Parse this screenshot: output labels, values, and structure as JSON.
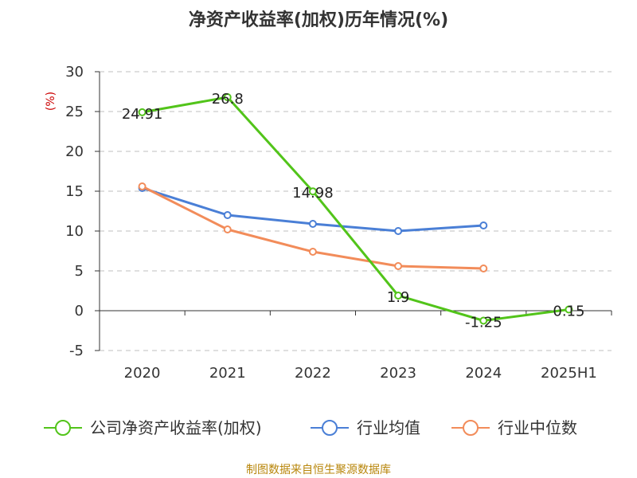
{
  "chart_data": {
    "type": "line",
    "title": "净资产收益率(加权)历年情况(%)",
    "ylabel": "(%)",
    "xlabel": "",
    "categories": [
      "2020",
      "2021",
      "2022",
      "2023",
      "2024",
      "2025H1"
    ],
    "ylim": [
      -5,
      30
    ],
    "yticks": [
      -5,
      0,
      5,
      10,
      15,
      20,
      25,
      30
    ],
    "grid": true,
    "legend_position": "bottom",
    "series": [
      {
        "name": "公司净资产收益率(加权)",
        "color": "#52c41a",
        "values": [
          24.91,
          26.8,
          14.98,
          1.9,
          -1.25,
          0.15
        ],
        "labels": [
          "24.91",
          "26.8",
          "14.98",
          "1.9",
          "-1.25",
          "0.15"
        ]
      },
      {
        "name": "行业均值",
        "color": "#4a7fd6",
        "values": [
          15.4,
          12.0,
          10.9,
          10.0,
          10.7,
          null
        ]
      },
      {
        "name": "行业中位数",
        "color": "#f28c5a",
        "values": [
          15.6,
          10.2,
          7.4,
          5.6,
          5.3,
          null
        ]
      }
    ]
  },
  "source_text": "制图数据来自恒生聚源数据库"
}
